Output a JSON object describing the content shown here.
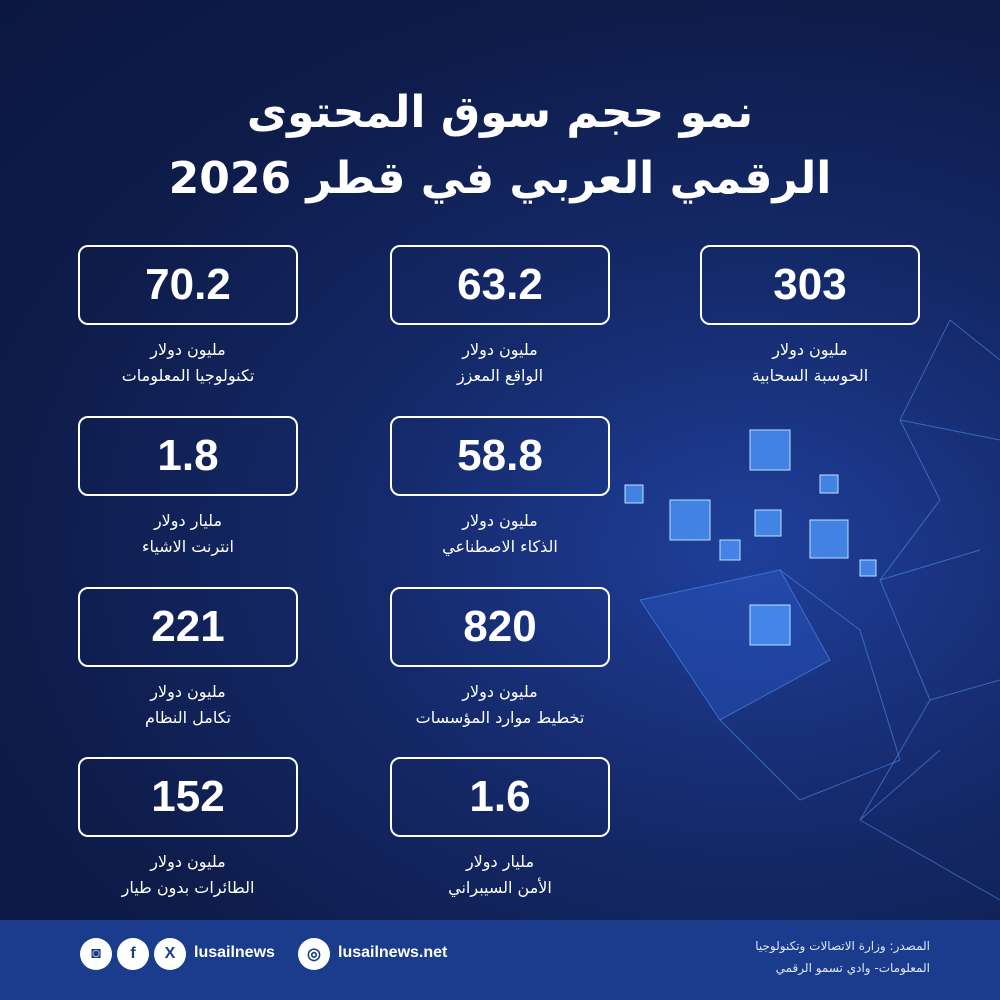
{
  "header": {
    "title_line1": "نمو حجم سوق المحتوى",
    "title_line2": "الرقمي العربي في قطر 2026"
  },
  "cards": [
    {
      "value": "303",
      "unit": "مليون دولار",
      "label": "الحوسبة السحابية"
    },
    {
      "value": "63.2",
      "unit": "مليون دولار",
      "label": "الواقع المعزز"
    },
    {
      "value": "70.2",
      "unit": "مليون دولار",
      "label": "تكنولوجيا المعلومات"
    },
    {
      "value": "58.8",
      "unit": "مليون دولار",
      "label": "الذكاء الاصطناعي"
    },
    {
      "value": "1.8",
      "unit": "مليار دولار",
      "label": "انترنت الاشياء"
    },
    {
      "value": "820",
      "unit": "مليون دولار",
      "label": "تخطيط موارد المؤسسات"
    },
    {
      "value": "221",
      "unit": "مليون دولار",
      "label": "تكامل النظام"
    },
    {
      "value": "1.6",
      "unit": "مليار دولار",
      "label": "الأمن السيبراني"
    },
    {
      "value": "152",
      "unit": "مليون دولار",
      "label": "الطائرات بدون طيار"
    }
  ],
  "footer": {
    "source_line1": "المصدر: وزارة الاتصالات وتكنولوجيا",
    "source_line2": "المعلومات- وادي تسمو الرقمي",
    "website": "lusailnews.net",
    "social_handle": "lusailnews"
  }
}
